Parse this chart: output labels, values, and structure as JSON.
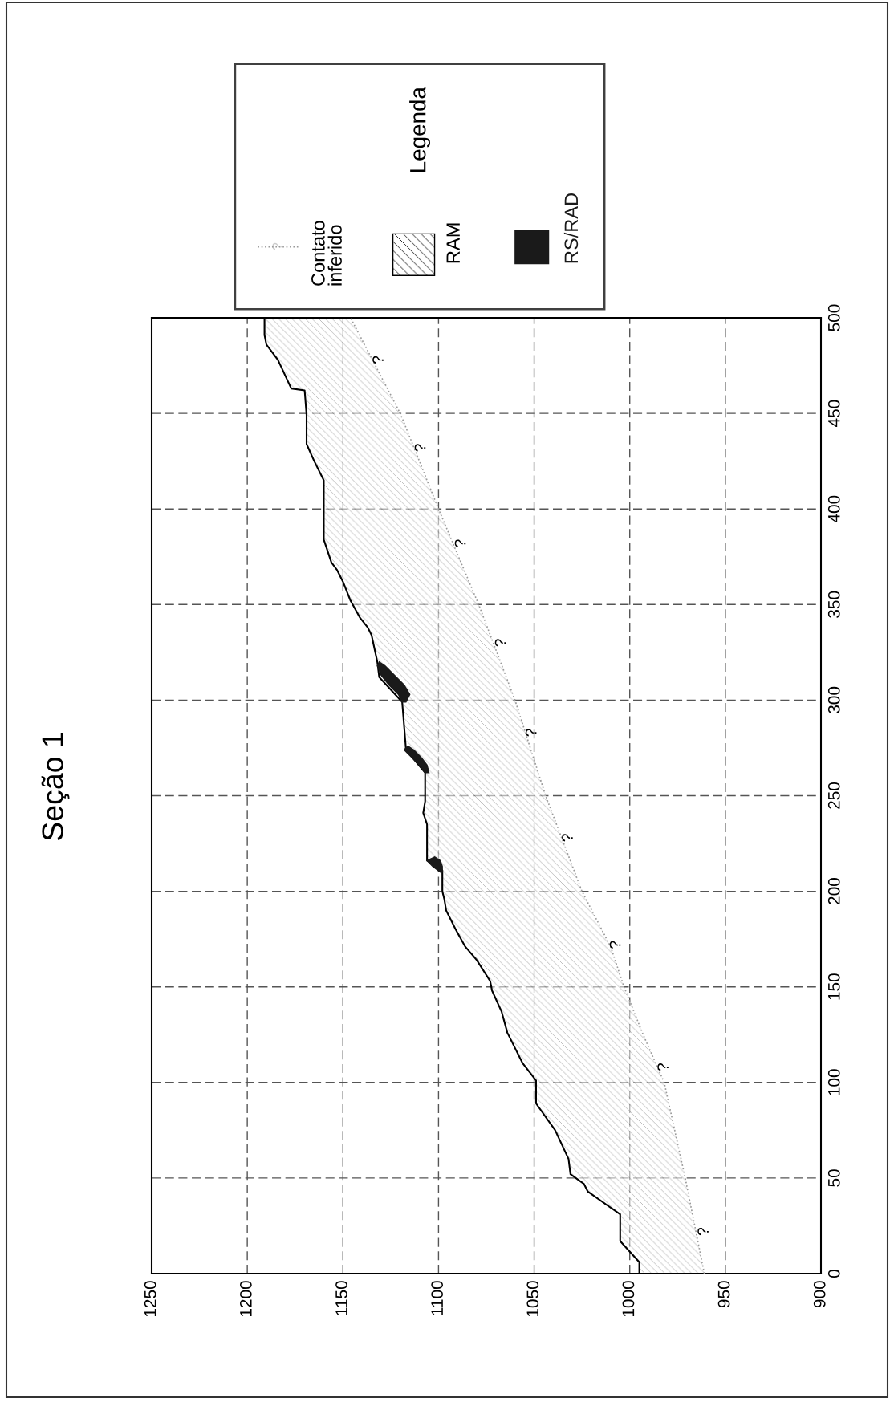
{
  "chart_data": {
    "type": "area",
    "title": "Seção 1",
    "legend_title": "Legenda",
    "legend": "top",
    "grid": true,
    "orientation": "horizontal",
    "ylim": [
      0,
      500
    ],
    "yticks": [
      0,
      50,
      100,
      150,
      200,
      250,
      300,
      350,
      400,
      450,
      500
    ],
    "xlim": [
      1250,
      900
    ],
    "xticks": [
      1250,
      1200,
      1150,
      1100,
      1050,
      1000,
      950,
      900
    ],
    "series": [
      {
        "name": "Contato inferido",
        "type": "line",
        "line_style": "dotted",
        "color": "#9a9a9a",
        "x": [
          0,
          50,
          100,
          125,
          150,
          171,
          200,
          250,
          300,
          350,
          400,
          450,
          500
        ],
        "values": [
          961,
          971,
          982,
          993,
          1003,
          1010,
          1025,
          1044,
          1060,
          1079,
          1100,
          1120,
          1146
        ]
      },
      {
        "name": "RAM",
        "color": "#000000",
        "x": [
          0,
          6,
          17,
          31,
          43,
          47,
          52,
          60,
          75,
          89,
          101,
          110,
          122,
          126,
          137,
          148,
          153,
          164,
          171,
          180,
          190,
          196,
          200,
          211,
          216,
          235,
          241,
          247,
          262,
          274,
          299,
          312,
          320,
          334,
          338,
          343,
          352,
          362,
          368,
          372,
          384,
          393,
          415,
          425,
          434,
          449,
          462,
          463,
          478,
          486,
          491,
          500
        ],
        "values": [
          995,
          995,
          1005,
          1005,
          1022,
          1024,
          1031,
          1032,
          1039,
          1049,
          1049,
          1056,
          1062,
          1064,
          1067,
          1072,
          1073,
          1080,
          1086,
          1091,
          1096,
          1097,
          1098,
          1098,
          1106,
          1106,
          1108,
          1107,
          1107,
          1117,
          1119,
          1131,
          1132,
          1135,
          1137,
          1141,
          1146,
          1150,
          1153,
          1156,
          1160,
          1160,
          1160,
          1165,
          1169,
          1169,
          1170,
          1177,
          1184,
          1190,
          1191,
          1191
        ]
      },
      {
        "name": "RS/RAD",
        "color": "#1a1a1a",
        "x": [
          210,
          213,
          216,
          218,
          216,
          213,
          210,
          null,
          262,
          266,
          270,
          274,
          276,
          274,
          270,
          266,
          262,
          null,
          299,
          303,
          308,
          313,
          318,
          320,
          318,
          313,
          308,
          303,
          299
        ],
        "values": [
          1098,
          1098,
          1099,
          1102,
          1106,
          1103,
          1099,
          null,
          1105,
          1106,
          1109,
          1113,
          1116,
          1118,
          1114,
          1110,
          1107,
          null,
          1117,
          1115,
          1118,
          1123,
          1128,
          1131,
          1132,
          1130,
          1126,
          1121,
          1119
        ]
      }
    ],
    "annotations": [
      "?",
      {
        "text": "?",
        "y": 22,
        "x": 965
      },
      {
        "text": "?",
        "y": 108,
        "x": 986
      },
      {
        "text": "?",
        "y": 172,
        "x": 1011
      },
      {
        "text": "?",
        "y": 228,
        "x": 1036
      },
      {
        "text": "?",
        "y": 283,
        "x": 1055
      },
      {
        "text": "?",
        "y": 330,
        "x": 1071
      },
      {
        "text": "?",
        "y": 382,
        "x": 1092
      },
      {
        "text": "?",
        "y": 432,
        "x": 1113
      },
      {
        "text": "?",
        "y": 478,
        "x": 1135
      }
    ]
  }
}
